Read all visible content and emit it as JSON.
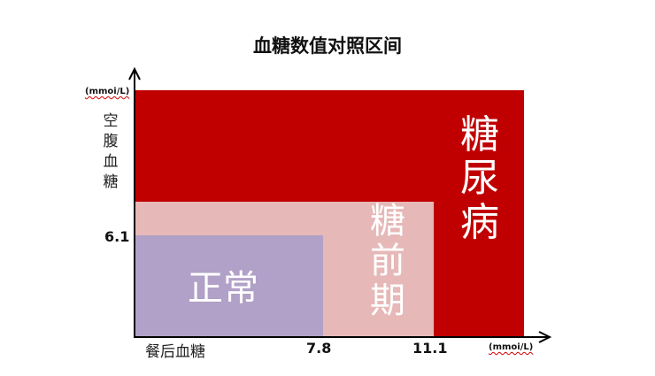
{
  "title": "血糖数值对照区间",
  "y_axis": {
    "unit": "(mmoi/L)",
    "label": "空腹血糖",
    "tick": "6.1"
  },
  "x_axis": {
    "unit": "(mmoi/L)",
    "label": "餐后血糖",
    "ticks": [
      "7.8",
      "11.1"
    ]
  },
  "regions": {
    "diabetes": {
      "label": "糖尿病",
      "color": "#c00000"
    },
    "prediabetes": {
      "label": "糖前期",
      "color": "#e6b8b7"
    },
    "normal": {
      "label": "正常",
      "color": "#b1a0c7"
    }
  },
  "axis_color": "#000000"
}
